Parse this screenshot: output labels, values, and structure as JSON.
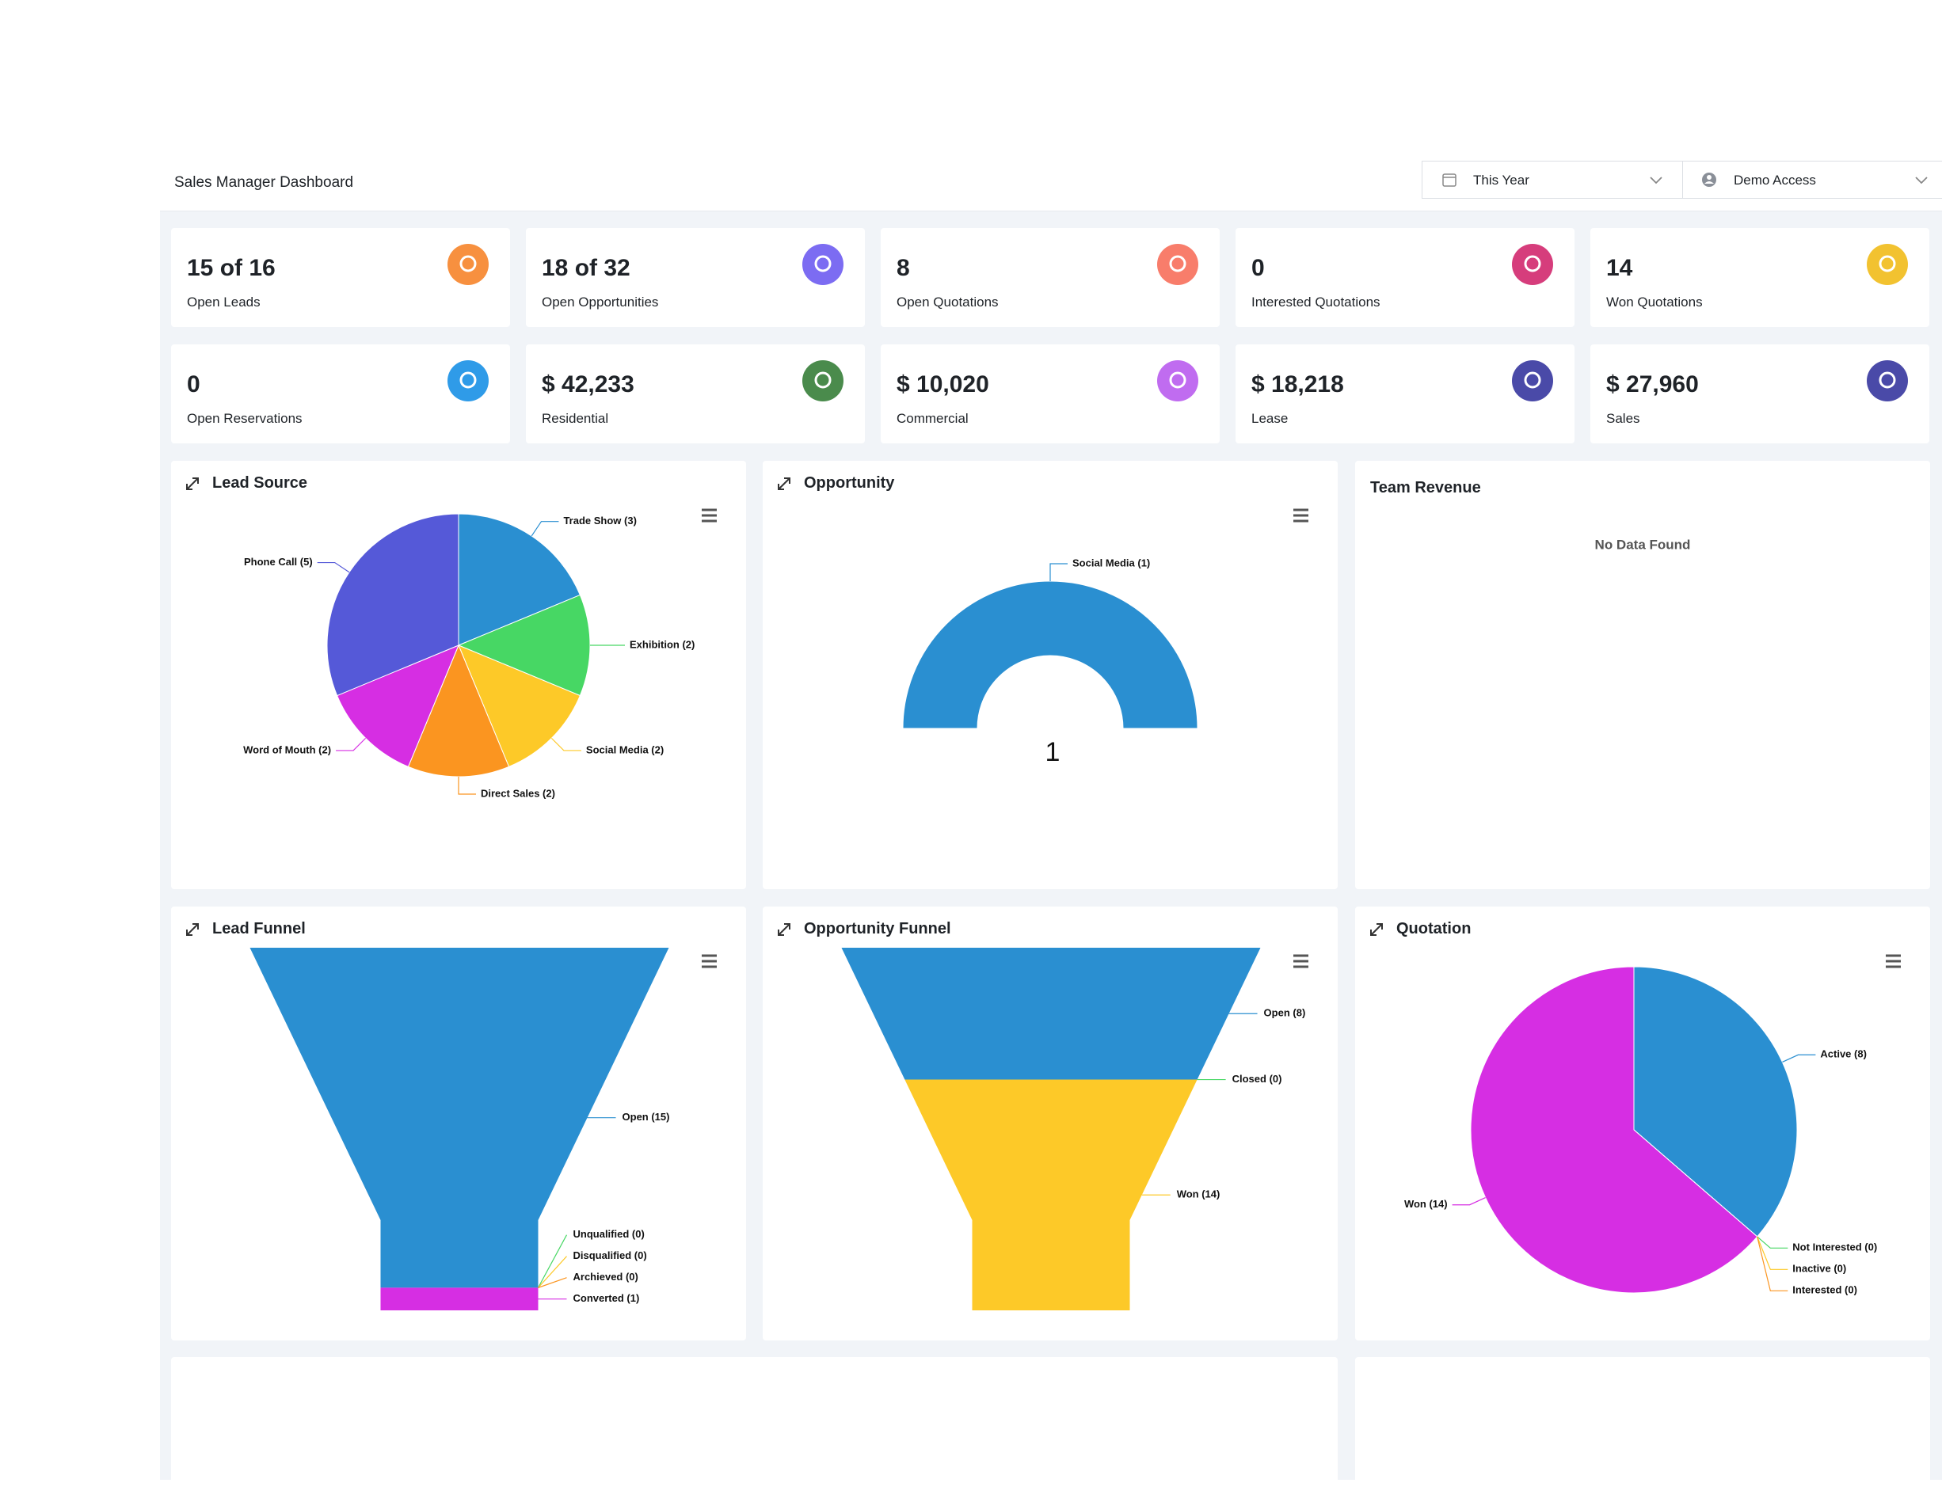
{
  "header": {
    "title": "Sales Manager Dashboard",
    "filters": [
      "This Year",
      "Demo Access"
    ]
  },
  "kpis": [
    {
      "value": "15 of 16",
      "label": "Open Leads",
      "color": "#f7903f"
    },
    {
      "value": "18 of 32",
      "label": "Open Opportunities",
      "color": "#7c6cf2"
    },
    {
      "value": "8",
      "label": "Open Quotations",
      "color": "#f87d6b"
    },
    {
      "value": "0",
      "label": "Interested Quotations",
      "color": "#d63d7c"
    },
    {
      "value": "14",
      "label": "Won Quotations",
      "color": "#f2c230"
    },
    {
      "value": "0",
      "label": "Open Reservations",
      "color": "#2f9be8"
    },
    {
      "value": "$ 42,233",
      "label": "Residential",
      "color": "#4a8b4c"
    },
    {
      "value": "$ 10,020",
      "label": "Commercial",
      "color": "#c06cf0"
    },
    {
      "value": "$ 18,218",
      "label": "Lease",
      "color": "#4a4aa8"
    },
    {
      "value": "$ 27,960",
      "label": "Sales",
      "color": "#4a4aa8"
    }
  ],
  "chart_data": [
    {
      "type": "pie",
      "title": "Lead Source",
      "categories": [
        "Trade Show (3)",
        "Exhibition (2)",
        "Social Media (2)",
        "Direct Sales (2)",
        "Word of Mouth (2)",
        "Phone Call (5)"
      ],
      "values": [
        3,
        2,
        2,
        2,
        2,
        5
      ],
      "colors": [
        "#2a8fd1",
        "#47d764",
        "#fdc928",
        "#fb9520",
        "#d62ee3",
        "#5559d8"
      ]
    },
    {
      "type": "semi-donut",
      "title": "Opportunity",
      "categories": [
        "Social Media (1)"
      ],
      "values": [
        1
      ],
      "colors": [
        "#2a8fd1"
      ],
      "center_label": 1
    },
    {
      "type": "empty",
      "title": "Team Revenue",
      "message": "No Data Found"
    },
    {
      "type": "funnel",
      "title": "Lead Funnel",
      "categories": [
        "Open (15)",
        "Unqualified (0)",
        "Disqualified (0)",
        "Archieved (0)",
        "Converted (1)"
      ],
      "values": [
        15,
        0,
        0,
        0,
        1
      ],
      "colors": [
        "#2a8fd1",
        "#47d764",
        "#fdc928",
        "#fb9520",
        "#d62ee3"
      ]
    },
    {
      "type": "funnel",
      "title": "Opportunity Funnel",
      "categories": [
        "Open (8)",
        "Closed (0)",
        "Won (14)"
      ],
      "values": [
        8,
        0,
        14
      ],
      "colors": [
        "#2a8fd1",
        "#47d764",
        "#fdc928"
      ]
    },
    {
      "type": "pie",
      "title": "Quotation",
      "categories": [
        "Active (8)",
        "Not Interested (0)",
        "Inactive (0)",
        "Interested (0)",
        "Won (14)"
      ],
      "values": [
        8,
        0,
        0,
        0,
        14
      ],
      "colors": [
        "#2a8fd1",
        "#47d764",
        "#fdc928",
        "#fb9520",
        "#d62ee3"
      ]
    }
  ]
}
